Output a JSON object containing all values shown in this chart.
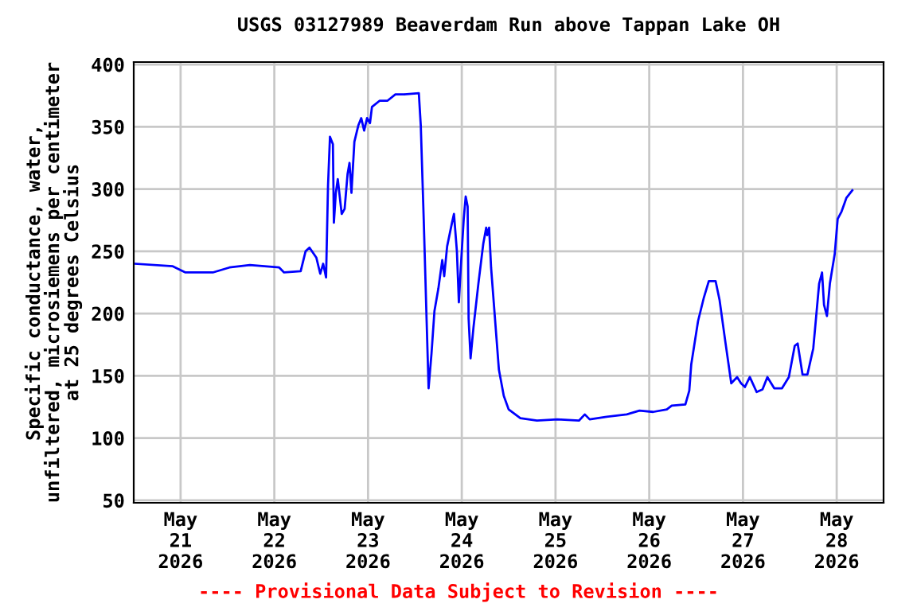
{
  "chart_data": {
    "type": "line",
    "title": "USGS 03127989 Beaverdam Run above Tappan Lake OH",
    "ylabel": "Specific conductance, water,\nunfiltered, microsiemens per centimeter\nat 25 degrees Celsius",
    "annotations": [
      "---- Provisional Data Subject to Revision ----"
    ],
    "x": [
      "2026-05-20T12:30",
      "2026-05-20T22:00",
      "2026-05-21T01:15",
      "2026-05-21T08:15",
      "2026-05-21T12:30",
      "2026-05-21T17:45",
      "2026-05-22T01:15",
      "2026-05-22T02:30",
      "2026-05-22T06:45",
      "2026-05-22T08:00",
      "2026-05-22T09:00",
      "2026-05-22T10:45",
      "2026-05-22T11:45",
      "2026-05-22T12:30",
      "2026-05-22T13:15",
      "2026-05-22T13:45",
      "2026-05-22T14:15",
      "2026-05-22T15:00",
      "2026-05-22T15:15",
      "2026-05-22T15:45",
      "2026-05-22T16:15",
      "2026-05-22T17:15",
      "2026-05-22T18:00",
      "2026-05-22T18:45",
      "2026-05-22T19:15",
      "2026-05-22T19:45",
      "2026-05-22T20:30",
      "2026-05-22T21:30",
      "2026-05-22T22:15",
      "2026-05-22T23:00",
      "2026-05-22T23:45",
      "2026-05-23T00:30",
      "2026-05-23T01:00",
      "2026-05-23T03:00",
      "2026-05-23T05:00",
      "2026-05-23T07:00",
      "2026-05-23T09:15",
      "2026-05-23T13:00",
      "2026-05-23T13:30",
      "2026-05-23T14:15",
      "2026-05-23T15:00",
      "2026-05-23T15:30",
      "2026-05-23T16:15",
      "2026-05-23T17:00",
      "2026-05-23T18:00",
      "2026-05-23T19:00",
      "2026-05-23T19:30",
      "2026-05-23T20:15",
      "2026-05-23T21:30",
      "2026-05-23T22:00",
      "2026-05-23T22:45",
      "2026-05-23T23:15",
      "2026-05-23T23:45",
      "2026-05-24T00:30",
      "2026-05-24T01:00",
      "2026-05-24T01:30",
      "2026-05-24T01:45",
      "2026-05-24T02:15",
      "2026-05-24T03:00",
      "2026-05-24T04:15",
      "2026-05-24T05:30",
      "2026-05-24T06:15",
      "2026-05-24T06:30",
      "2026-05-24T07:00",
      "2026-05-24T07:30",
      "2026-05-24T08:30",
      "2026-05-24T09:30",
      "2026-05-24T10:45",
      "2026-05-24T12:00",
      "2026-05-24T15:00",
      "2026-05-24T19:15",
      "2026-05-25T00:30",
      "2026-05-25T06:00",
      "2026-05-25T07:30",
      "2026-05-25T08:45",
      "2026-05-25T12:45",
      "2026-05-25T18:15",
      "2026-05-25T21:30",
      "2026-05-26T01:00",
      "2026-05-26T04:30",
      "2026-05-26T05:45",
      "2026-05-26T09:15",
      "2026-05-26T10:15",
      "2026-05-26T10:45",
      "2026-05-26T12:30",
      "2026-05-26T14:00",
      "2026-05-26T15:15",
      "2026-05-26T17:00",
      "2026-05-26T18:00",
      "2026-05-26T19:30",
      "2026-05-26T21:00",
      "2026-05-26T22:30",
      "2026-05-26T23:30",
      "2026-05-27T00:30",
      "2026-05-27T01:45",
      "2026-05-27T03:30",
      "2026-05-27T05:00",
      "2026-05-27T06:15",
      "2026-05-27T08:00",
      "2026-05-27T10:00",
      "2026-05-27T11:45",
      "2026-05-27T13:15",
      "2026-05-27T14:00",
      "2026-05-27T15:15",
      "2026-05-27T16:30",
      "2026-05-27T18:00",
      "2026-05-27T18:45",
      "2026-05-27T19:30",
      "2026-05-27T20:15",
      "2026-05-27T20:45",
      "2026-05-27T21:30",
      "2026-05-27T22:15",
      "2026-05-27T23:30",
      "2026-05-28T00:15",
      "2026-05-28T01:15",
      "2026-05-28T02:30",
      "2026-05-28T04:00"
    ],
    "series": [
      {
        "color": "#0000ff",
        "values": [
          240,
          238,
          233,
          233,
          237,
          239,
          237,
          233,
          234,
          250,
          253,
          245,
          232,
          240,
          229,
          303,
          342,
          336,
          273,
          297,
          308,
          280,
          284,
          312,
          321,
          297,
          338,
          351,
          357,
          347,
          357,
          353,
          366,
          371,
          371,
          376,
          376,
          377,
          351,
          276,
          194,
          140,
          168,
          202,
          220,
          243,
          230,
          254,
          273,
          280,
          250,
          209,
          237,
          276,
          294,
          286,
          196,
          164,
          189,
          224,
          256,
          269,
          263,
          269,
          237,
          196,
          155,
          134,
          123,
          116,
          114,
          115,
          114,
          119,
          115,
          117,
          119,
          122,
          121,
          123,
          126,
          127,
          138,
          159,
          194,
          213,
          226,
          226,
          211,
          177,
          144,
          149,
          144,
          141,
          149,
          137,
          139,
          149,
          140,
          140,
          149,
          174,
          176,
          151,
          151,
          172,
          198,
          224,
          233,
          207,
          198,
          224,
          248,
          276,
          282,
          293,
          299
        ]
      }
    ],
    "xlim": [
      "2026-05-20T12:00",
      "2026-05-28T12:00"
    ],
    "xticks": [
      {
        "value": "2026-05-21",
        "label": "May\n21\n2026"
      },
      {
        "value": "2026-05-22",
        "label": "May\n22\n2026"
      },
      {
        "value": "2026-05-23",
        "label": "May\n23\n2026"
      },
      {
        "value": "2026-05-24",
        "label": "May\n24\n2026"
      },
      {
        "value": "2026-05-25",
        "label": "May\n25\n2026"
      },
      {
        "value": "2026-05-26",
        "label": "May\n26\n2026"
      },
      {
        "value": "2026-05-27",
        "label": "May\n27\n2026"
      },
      {
        "value": "2026-05-28",
        "label": "May\n28\n2026"
      }
    ],
    "ylim": [
      48,
      402
    ],
    "yticks": [
      50,
      100,
      150,
      200,
      250,
      300,
      350,
      400
    ],
    "grid": true,
    "marker": "none",
    "line_style": "solid",
    "legend": false
  }
}
